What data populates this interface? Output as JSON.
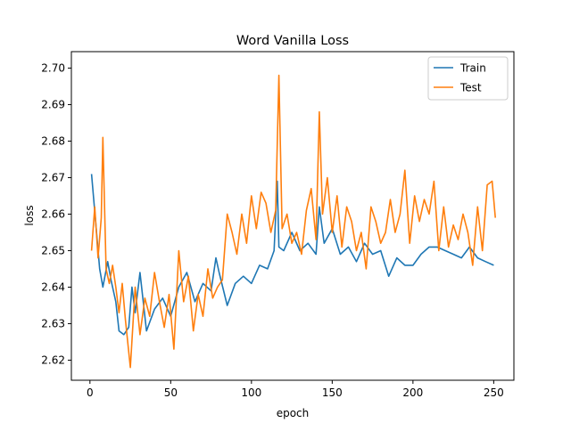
{
  "chart_data": {
    "type": "line",
    "title": "Word Vanilla Loss",
    "xlabel": "epoch",
    "ylabel": "loss",
    "xlim": [
      -11.5,
      262.5
    ],
    "ylim": [
      2.6145,
      2.7045
    ],
    "xticks": [
      0,
      50,
      100,
      150,
      200,
      250
    ],
    "yticks": [
      2.62,
      2.63,
      2.64,
      2.65,
      2.66,
      2.67,
      2.68,
      2.69,
      2.7
    ],
    "ytick_labels": [
      "2.62",
      "2.63",
      "2.64",
      "2.65",
      "2.66",
      "2.67",
      "2.68",
      "2.69",
      "2.70"
    ],
    "grid": false,
    "legend_position": "top-right",
    "series": [
      {
        "name": "Train",
        "color": "#1f77b4",
        "x": [
          1,
          6,
          8,
          11,
          13,
          16,
          18,
          21,
          24,
          26,
          28,
          31,
          35,
          40,
          45,
          50,
          55,
          60,
          65,
          70,
          75,
          78,
          80,
          85,
          90,
          95,
          100,
          105,
          110,
          114,
          116,
          117,
          120,
          125,
          130,
          135,
          140,
          142,
          145,
          150,
          155,
          160,
          165,
          170,
          175,
          180,
          185,
          190,
          195,
          200,
          205,
          210,
          215,
          220,
          225,
          230,
          235,
          240,
          245,
          250
        ],
        "values": [
          2.671,
          2.645,
          2.64,
          2.647,
          2.642,
          2.636,
          2.628,
          2.627,
          2.629,
          2.64,
          2.633,
          2.644,
          2.628,
          2.634,
          2.637,
          2.632,
          2.64,
          2.644,
          2.636,
          2.641,
          2.639,
          2.648,
          2.644,
          2.635,
          2.641,
          2.643,
          2.641,
          2.646,
          2.645,
          2.65,
          2.669,
          2.651,
          2.65,
          2.655,
          2.65,
          2.652,
          2.649,
          2.662,
          2.652,
          2.656,
          2.649,
          2.651,
          2.647,
          2.652,
          2.649,
          2.65,
          2.643,
          2.648,
          2.646,
          2.646,
          2.649,
          2.651,
          2.651,
          2.65,
          2.649,
          2.648,
          2.651,
          2.648,
          2.647,
          2.646
        ]
      },
      {
        "name": "Test",
        "color": "#ff7f0e",
        "x": [
          1,
          3,
          5,
          7,
          8,
          10,
          12,
          14,
          16,
          18,
          20,
          22,
          25,
          28,
          31,
          34,
          37,
          40,
          43,
          46,
          49,
          52,
          55,
          58,
          61,
          64,
          67,
          70,
          73,
          76,
          79,
          82,
          85,
          88,
          91,
          94,
          97,
          100,
          103,
          106,
          109,
          112,
          115,
          117,
          119,
          122,
          125,
          128,
          131,
          134,
          137,
          140,
          142,
          144,
          147,
          150,
          153,
          156,
          159,
          162,
          165,
          168,
          171,
          174,
          177,
          180,
          183,
          186,
          189,
          192,
          195,
          198,
          201,
          204,
          207,
          210,
          213,
          216,
          219,
          222,
          225,
          228,
          231,
          234,
          237,
          240,
          243,
          246,
          249,
          251
        ],
        "values": [
          2.65,
          2.662,
          2.648,
          2.659,
          2.681,
          2.645,
          2.641,
          2.646,
          2.64,
          2.633,
          2.641,
          2.631,
          2.618,
          2.64,
          2.627,
          2.637,
          2.632,
          2.644,
          2.636,
          2.629,
          2.638,
          2.623,
          2.65,
          2.636,
          2.643,
          2.628,
          2.638,
          2.632,
          2.645,
          2.637,
          2.64,
          2.642,
          2.66,
          2.655,
          2.649,
          2.66,
          2.652,
          2.665,
          2.656,
          2.666,
          2.663,
          2.655,
          2.661,
          2.698,
          2.656,
          2.66,
          2.652,
          2.655,
          2.649,
          2.661,
          2.667,
          2.653,
          2.688,
          2.66,
          2.67,
          2.655,
          2.665,
          2.651,
          2.662,
          2.658,
          2.65,
          2.655,
          2.645,
          2.662,
          2.658,
          2.652,
          2.655,
          2.664,
          2.655,
          2.66,
          2.672,
          2.652,
          2.665,
          2.658,
          2.664,
          2.66,
          2.669,
          2.65,
          2.662,
          2.651,
          2.657,
          2.653,
          2.66,
          2.655,
          2.646,
          2.662,
          2.65,
          2.668,
          2.669,
          2.659
        ]
      }
    ]
  }
}
